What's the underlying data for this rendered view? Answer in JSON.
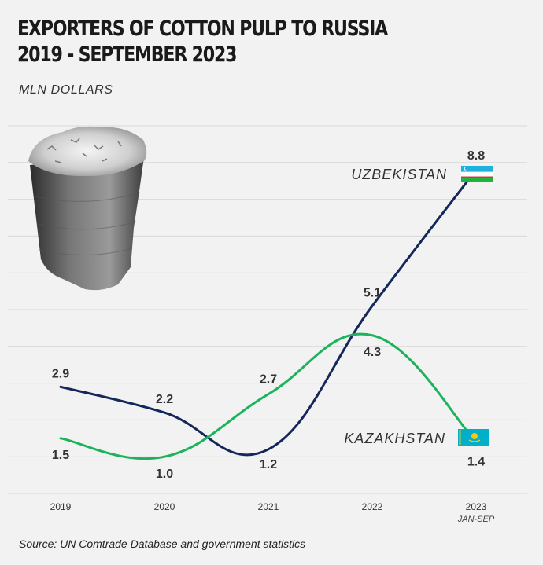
{
  "title_lines": [
    "EXPORTERS OF COTTON PULP TO RUSSIA",
    "2019 - SEPTEMBER 2023"
  ],
  "units": "MLN DOLLARS",
  "source": "Source: UN Comtrade Database and government statistics",
  "chart_data": {
    "type": "line",
    "title": "EXPORTERS OF COTTON PULP TO RUSSIA 2019 - SEPTEMBER 2023",
    "ylabel": "MLN DOLLARS",
    "x": [
      "2019",
      "2020",
      "2021",
      "2022",
      "2023"
    ],
    "x_sublabels": [
      "",
      "",
      "",
      "",
      "JAN-SEP"
    ],
    "ylim": [
      0,
      10
    ],
    "grid": true,
    "series": [
      {
        "name": "UZBEKISTAN",
        "values": [
          2.9,
          2.2,
          1.2,
          5.1,
          8.8
        ],
        "color": "#14275a"
      },
      {
        "name": "KAZAKHSTAN",
        "values": [
          1.5,
          1.0,
          2.7,
          4.3,
          1.4
        ],
        "color": "#1db35b"
      }
    ]
  },
  "colors": {
    "background": "#f2f2f2",
    "grid": "#d8d8d8",
    "uzbekistan": "#14275a",
    "kazakhstan": "#1db35b",
    "uzbek_flag_blue": "#1eb1de",
    "uzbek_flag_green": "#1eb53a",
    "kazakh_flag_blue": "#00afca",
    "kazakh_flag_gold": "#fec50c"
  },
  "images": {
    "cotton_bale": "cotton-pulp-bale-photo"
  },
  "icons": {
    "uzbekistan": "uzbekistan-flag-icon",
    "kazakhstan": "kazakhstan-flag-icon"
  }
}
